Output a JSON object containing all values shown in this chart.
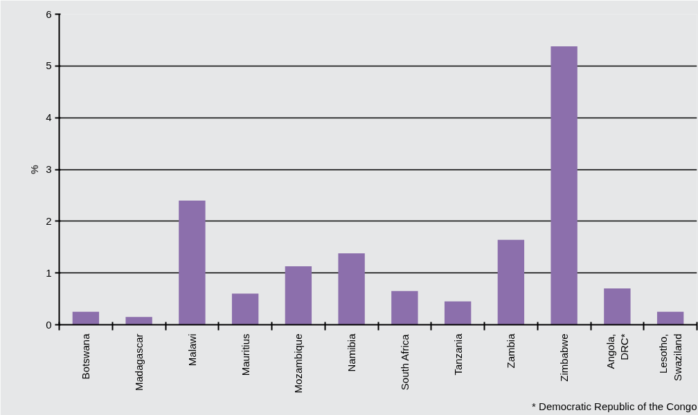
{
  "chart_data": {
    "type": "bar",
    "ylabel": "%",
    "categories": [
      "Botswana",
      "Madagascar",
      "Malawi",
      "Mauritius",
      "Mozambique",
      "Namibia",
      "South Africa",
      "Tanzania",
      "Zambia",
      "Zimbabwe",
      "Angola,\nDRC*",
      "Lesotho,\nSwaziland"
    ],
    "values": [
      0.25,
      0.15,
      2.4,
      0.6,
      1.13,
      1.38,
      0.65,
      0.45,
      1.64,
      5.38,
      0.7,
      0.25
    ],
    "color": "#8c6fac",
    "ylim": [
      0,
      6
    ],
    "yticks": [
      0,
      1,
      2,
      3,
      4,
      5,
      6
    ],
    "grid": "y",
    "annotations": [
      "* Democratic Republic of the Congo"
    ]
  }
}
